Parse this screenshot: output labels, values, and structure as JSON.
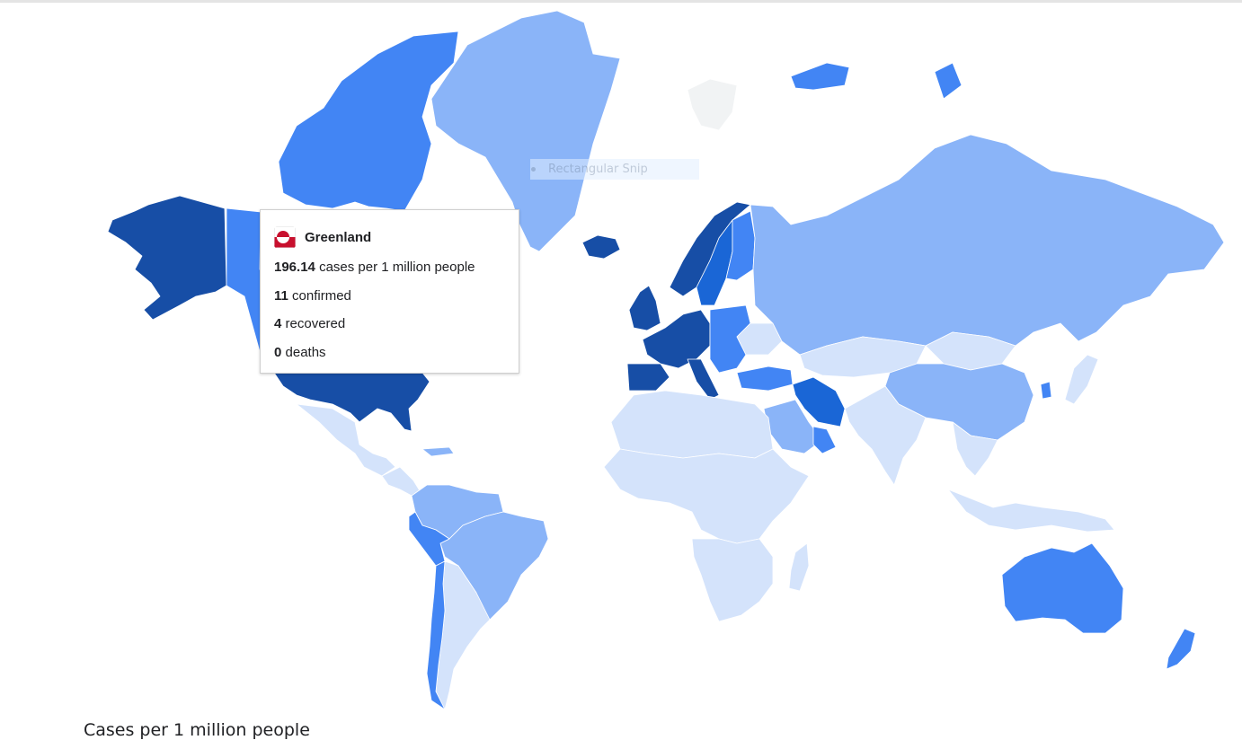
{
  "legend": {
    "title": "Cases per 1 million people"
  },
  "overlay": {
    "snip_label": "Rectangular Snip"
  },
  "tooltip": {
    "country": "Greenland",
    "rows": [
      {
        "value": "196.14",
        "label": "cases per 1 million people"
      },
      {
        "value": "11",
        "label": "confirmed"
      },
      {
        "value": "4",
        "label": "recovered"
      },
      {
        "value": "0",
        "label": "deaths"
      }
    ]
  },
  "scale_colors": {
    "very_low": "#d4e3fb",
    "low": "#8ab4f8",
    "medium": "#4285f4",
    "high": "#1a66d6",
    "very_high": "#174ea6",
    "no_data": "#f1f3f4"
  },
  "regions": [
    {
      "name": "Alaska",
      "level": "very_high"
    },
    {
      "name": "Canada",
      "level": "medium"
    },
    {
      "name": "Greenland",
      "level": "low"
    },
    {
      "name": "United States",
      "level": "very_high"
    },
    {
      "name": "Mexico",
      "level": "very_low"
    },
    {
      "name": "Central America",
      "level": "very_low"
    },
    {
      "name": "Colombia",
      "level": "low"
    },
    {
      "name": "Brazil",
      "level": "low"
    },
    {
      "name": "Peru",
      "level": "medium"
    },
    {
      "name": "Argentina",
      "level": "very_low"
    },
    {
      "name": "Chile",
      "level": "medium"
    },
    {
      "name": "Iceland",
      "level": "very_high"
    },
    {
      "name": "Norway",
      "level": "very_high"
    },
    {
      "name": "Sweden",
      "level": "high"
    },
    {
      "name": "Finland",
      "level": "medium"
    },
    {
      "name": "United Kingdom",
      "level": "very_high"
    },
    {
      "name": "Western Europe",
      "level": "very_high"
    },
    {
      "name": "Spain",
      "level": "very_high"
    },
    {
      "name": "Italy",
      "level": "very_high"
    },
    {
      "name": "Eastern Europe",
      "level": "medium"
    },
    {
      "name": "Ukraine",
      "level": "very_low"
    },
    {
      "name": "Turkey",
      "level": "medium"
    },
    {
      "name": "Russia",
      "level": "low"
    },
    {
      "name": "Kazakhstan",
      "level": "very_low"
    },
    {
      "name": "Mongolia",
      "level": "very_low"
    },
    {
      "name": "China",
      "level": "low"
    },
    {
      "name": "Iran",
      "level": "high"
    },
    {
      "name": "Saudi Arabia",
      "level": "low"
    },
    {
      "name": "Gulf States",
      "level": "medium"
    },
    {
      "name": "India",
      "level": "very_low"
    },
    {
      "name": "Southeast Asia",
      "level": "very_low"
    },
    {
      "name": "Indonesia",
      "level": "very_low"
    },
    {
      "name": "South Korea",
      "level": "medium"
    },
    {
      "name": "Japan",
      "level": "very_low"
    },
    {
      "name": "North Africa",
      "level": "very_low"
    },
    {
      "name": "Central Africa",
      "level": "very_low"
    },
    {
      "name": "Southern Africa",
      "level": "very_low"
    },
    {
      "name": "Madagascar",
      "level": "very_low"
    },
    {
      "name": "Australia",
      "level": "medium"
    },
    {
      "name": "New Zealand",
      "level": "medium"
    },
    {
      "name": "Svalbard",
      "level": "no_data"
    },
    {
      "name": "Arctic Russia islands",
      "level": "medium"
    },
    {
      "name": "Caribbean",
      "level": "low"
    }
  ]
}
